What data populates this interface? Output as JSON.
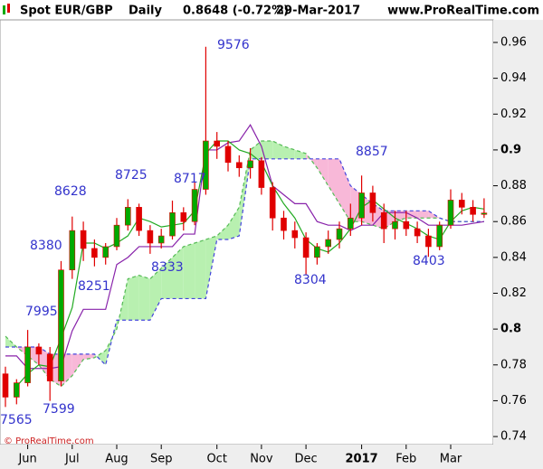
{
  "chart_data": {
    "type": "candlestick",
    "symbol": "Spot EUR/GBP",
    "period": "Daily",
    "last": "0.8648 (-0.72%)",
    "date": "29-Mar-2017",
    "source": "www.ProRealTime.com",
    "copyright": "© ProRealTime.com",
    "categories": [
      null,
      null,
      "Jun",
      null,
      null,
      null,
      "Jul",
      null,
      null,
      null,
      "Aug",
      null,
      null,
      null,
      "Sep",
      null,
      null,
      null,
      null,
      "Oct",
      null,
      null,
      null,
      "Nov",
      null,
      null,
      null,
      "Dec",
      null,
      null,
      null,
      null,
      "2017",
      null,
      null,
      null,
      "Feb",
      null,
      null,
      null,
      "Mar",
      null,
      null,
      null
    ],
    "open": [
      0.775,
      0.762,
      0.77,
      0.79,
      0.786,
      0.771,
      0.833,
      0.855,
      0.845,
      0.84,
      0.846,
      0.858,
      0.868,
      0.855,
      0.848,
      0.852,
      0.865,
      0.86,
      0.878,
      0.905,
      0.902,
      0.893,
      0.89,
      0.894,
      0.879,
      0.862,
      0.855,
      0.851,
      0.84,
      0.846,
      0.85,
      0.856,
      0.862,
      0.876,
      0.865,
      0.856,
      0.86,
      0.856,
      0.852,
      0.846,
      0.858,
      0.872,
      0.868,
      0.864
    ],
    "high": [
      0.779,
      0.772,
      0.7995,
      0.792,
      0.79,
      0.838,
      0.8628,
      0.86,
      0.85,
      0.848,
      0.862,
      0.8725,
      0.87,
      0.858,
      0.856,
      0.8717,
      0.868,
      0.882,
      0.9576,
      0.91,
      0.905,
      0.897,
      0.901,
      0.896,
      0.882,
      0.866,
      0.86,
      0.854,
      0.848,
      0.855,
      0.86,
      0.87,
      0.8857,
      0.88,
      0.87,
      0.866,
      0.866,
      0.86,
      0.856,
      0.86,
      0.878,
      0.876,
      0.872,
      0.873
    ],
    "low": [
      0.7565,
      0.758,
      0.768,
      0.78,
      0.7599,
      0.768,
      0.828,
      0.838,
      0.835,
      0.836,
      0.844,
      0.855,
      0.852,
      0.842,
      0.845,
      0.85,
      0.855,
      0.858,
      0.875,
      0.895,
      0.888,
      0.885,
      0.884,
      0.875,
      0.855,
      0.85,
      0.845,
      0.8304,
      0.836,
      0.842,
      0.845,
      0.852,
      0.858,
      0.86,
      0.848,
      0.85,
      0.852,
      0.848,
      0.8403,
      0.844,
      0.856,
      0.864,
      0.86,
      0.862
    ],
    "close": [
      0.762,
      0.77,
      0.79,
      0.786,
      0.771,
      0.833,
      0.855,
      0.845,
      0.84,
      0.846,
      0.858,
      0.868,
      0.855,
      0.848,
      0.852,
      0.865,
      0.86,
      0.878,
      0.905,
      0.902,
      0.893,
      0.89,
      0.894,
      0.879,
      0.862,
      0.855,
      0.851,
      0.84,
      0.846,
      0.85,
      0.856,
      0.862,
      0.876,
      0.865,
      0.856,
      0.86,
      0.856,
      0.852,
      0.846,
      0.858,
      0.872,
      0.868,
      0.864,
      0.8648
    ],
    "up_color": "#00aa00",
    "down_color": "#e00000",
    "tenkan": {
      "color": "#22aa22",
      "values": [
        null,
        0.768,
        0.775,
        0.78,
        0.779,
        0.795,
        0.812,
        0.848,
        0.848,
        0.845,
        0.848,
        0.852,
        0.862,
        0.86,
        0.857,
        0.858,
        0.859,
        0.866,
        0.898,
        0.905,
        0.905,
        0.9,
        0.898,
        0.893,
        0.88,
        0.87,
        0.862,
        0.85,
        0.845,
        0.843,
        0.848,
        0.856,
        0.868,
        0.872,
        0.867,
        0.862,
        0.859,
        0.856,
        0.852,
        0.85,
        0.86,
        0.866,
        0.868,
        0.867
      ]
    },
    "kijun": {
      "color": "#8822aa",
      "values": [
        0.785,
        0.785,
        0.778,
        0.778,
        0.778,
        0.779,
        0.799,
        0.811,
        0.811,
        0.811,
        0.836,
        0.84,
        0.846,
        0.846,
        0.846,
        0.846,
        0.853,
        0.853,
        0.9,
        0.9,
        0.904,
        0.905,
        0.914,
        0.902,
        0.88,
        0.875,
        0.87,
        0.87,
        0.86,
        0.858,
        0.858,
        0.855,
        0.858,
        0.858,
        0.865,
        0.865,
        0.865,
        0.862,
        0.858,
        0.858,
        0.858,
        0.858,
        0.859,
        0.86
      ]
    },
    "span_a": {
      "color": "#55bb55",
      "values": [
        0.796,
        0.79,
        0.785,
        0.78,
        0.772,
        0.768,
        0.774,
        0.783,
        0.784,
        0.788,
        0.8,
        0.828,
        0.83,
        0.828,
        0.834,
        0.84,
        0.846,
        0.848,
        0.85,
        0.852,
        0.858,
        0.868,
        0.9,
        0.905,
        0.905,
        0.902,
        0.9,
        0.898,
        0.89,
        0.88,
        0.87,
        0.86,
        0.86,
        0.858,
        0.856,
        0.86,
        0.862,
        0.862,
        0.862,
        0.862,
        0.86,
        0.86,
        0.86,
        0.86
      ]
    },
    "span_b": {
      "color": "#4444dd",
      "values": [
        0.79,
        0.79,
        0.79,
        0.79,
        0.786,
        0.786,
        0.786,
        0.786,
        0.786,
        0.78,
        0.805,
        0.805,
        0.805,
        0.805,
        0.817,
        0.817,
        0.817,
        0.817,
        0.817,
        0.85,
        0.85,
        0.852,
        0.895,
        0.895,
        0.895,
        0.895,
        0.895,
        0.895,
        0.895,
        0.895,
        0.895,
        0.88,
        0.875,
        0.87,
        0.866,
        0.866,
        0.866,
        0.866,
        0.866,
        0.862,
        0.86,
        0.86,
        0.86,
        0.86
      ]
    },
    "cloud_up_color": "#b8f0b0",
    "cloud_down_color": "#f8b8d8",
    "annotations": [
      "7565",
      "7599",
      "7995",
      "8380",
      "8251",
      "8628",
      "8725",
      "8333",
      "8717",
      "9576",
      "8304",
      "8857",
      "8403"
    ],
    "ylim": [
      0.7355,
      0.9726
    ],
    "yticks": [
      0.74,
      0.76,
      0.78,
      0.8,
      0.82,
      0.84,
      0.86,
      0.88,
      0.9,
      0.92,
      0.94,
      0.96
    ],
    "bold_yticks": [
      0.8,
      0.9
    ],
    "bold_categories": [
      "2017"
    ]
  }
}
